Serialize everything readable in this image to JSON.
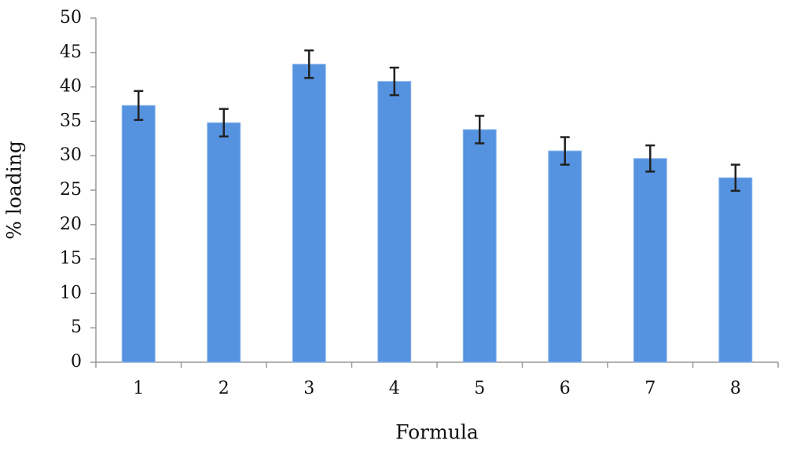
{
  "chart_data": {
    "type": "bar",
    "categories": [
      "1",
      "2",
      "3",
      "4",
      "5",
      "6",
      "7",
      "8"
    ],
    "values": [
      37.3,
      34.8,
      43.3,
      40.8,
      33.8,
      30.7,
      29.6,
      26.8
    ],
    "errors": [
      2.1,
      2.0,
      2.0,
      2.0,
      2.0,
      2.0,
      1.9,
      1.9
    ],
    "color": "#5592e0",
    "ylim": [
      0,
      50
    ],
    "yticks": [
      0,
      5,
      10,
      15,
      20,
      25,
      30,
      35,
      40,
      45,
      50
    ],
    "ylabel": "% loading",
    "xlabel": "Formula",
    "grid": false
  }
}
